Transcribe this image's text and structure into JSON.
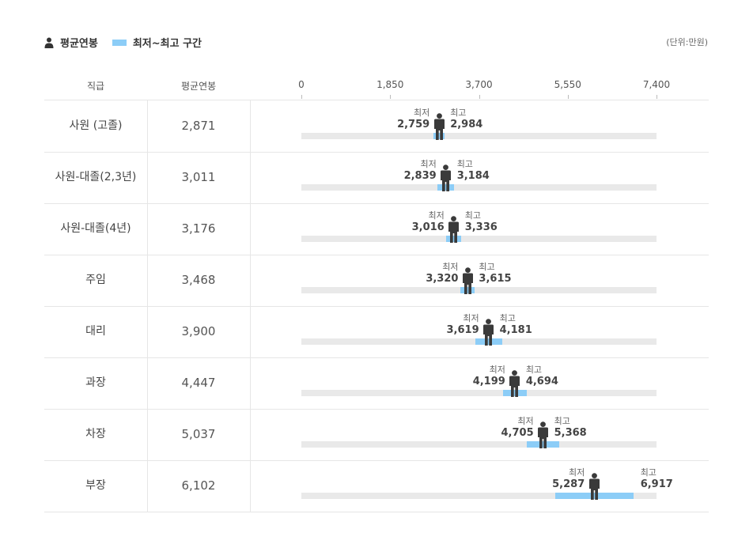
{
  "legend": {
    "avg_label": "평균연봉",
    "range_label": "최저~최고 구간",
    "unit": "(단위:만원)"
  },
  "columns": {
    "rank": "직급",
    "avg": "평균연봉"
  },
  "captions": {
    "min": "최저",
    "max": "최고"
  },
  "colors": {
    "range": "#8ccdf7",
    "track": "#e9e9e9",
    "person": "#3a3a3a"
  },
  "chart_data": {
    "type": "range-bar",
    "axis": {
      "min": 0,
      "max": 7400,
      "ticks": [
        "0",
        "1,850",
        "3,700",
        "5,550",
        "7,400"
      ],
      "tick_values": [
        0,
        1850,
        3700,
        5550,
        7400
      ]
    },
    "rows": [
      {
        "title": "사원 (고졸)",
        "avg": 2871,
        "avg_label": "2,871",
        "min": 2759,
        "min_label": "2,759",
        "max": 2984,
        "max_label": "2,984"
      },
      {
        "title": "사원-대졸(2,3년)",
        "avg": 3011,
        "avg_label": "3,011",
        "min": 2839,
        "min_label": "2,839",
        "max": 3184,
        "max_label": "3,184"
      },
      {
        "title": "사원-대졸(4년)",
        "avg": 3176,
        "avg_label": "3,176",
        "min": 3016,
        "min_label": "3,016",
        "max": 3336,
        "max_label": "3,336"
      },
      {
        "title": "주임",
        "avg": 3468,
        "avg_label": "3,468",
        "min": 3320,
        "min_label": "3,320",
        "max": 3615,
        "max_label": "3,615"
      },
      {
        "title": "대리",
        "avg": 3900,
        "avg_label": "3,900",
        "min": 3619,
        "min_label": "3,619",
        "max": 4181,
        "max_label": "4,181"
      },
      {
        "title": "과장",
        "avg": 4447,
        "avg_label": "4,447",
        "min": 4199,
        "min_label": "4,199",
        "max": 4694,
        "max_label": "4,694"
      },
      {
        "title": "차장",
        "avg": 5037,
        "avg_label": "5,037",
        "min": 4705,
        "min_label": "4,705",
        "max": 5368,
        "max_label": "5,368"
      },
      {
        "title": "부장",
        "avg": 6102,
        "avg_label": "6,102",
        "min": 5287,
        "min_label": "5,287",
        "max": 6917,
        "max_label": "6,917"
      }
    ]
  }
}
